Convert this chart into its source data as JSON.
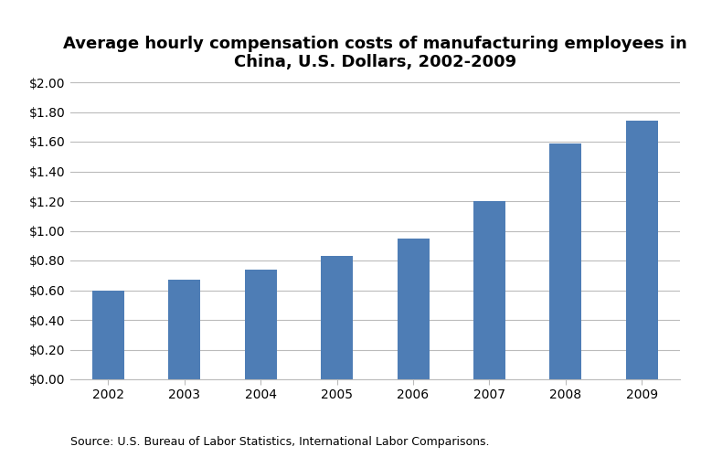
{
  "title": "Average hourly compensation costs of manufacturing employees in\nChina, U.S. Dollars, 2002-2009",
  "categories": [
    "2002",
    "2003",
    "2004",
    "2005",
    "2006",
    "2007",
    "2008",
    "2009"
  ],
  "values": [
    0.6,
    0.67,
    0.74,
    0.83,
    0.95,
    1.2,
    1.59,
    1.74
  ],
  "bar_color": "#4E7DB5",
  "ylim": [
    0,
    2.0
  ],
  "yticks": [
    0.0,
    0.2,
    0.4,
    0.6,
    0.8,
    1.0,
    1.2,
    1.4,
    1.6,
    1.8,
    2.0
  ],
  "source_text": "Source: U.S. Bureau of Labor Statistics, International Labor Comparisons.",
  "background_color": "#ffffff",
  "title_fontsize": 13,
  "tick_fontsize": 10,
  "source_fontsize": 9,
  "grid_color": "#bbbbbb",
  "bar_width": 0.42
}
